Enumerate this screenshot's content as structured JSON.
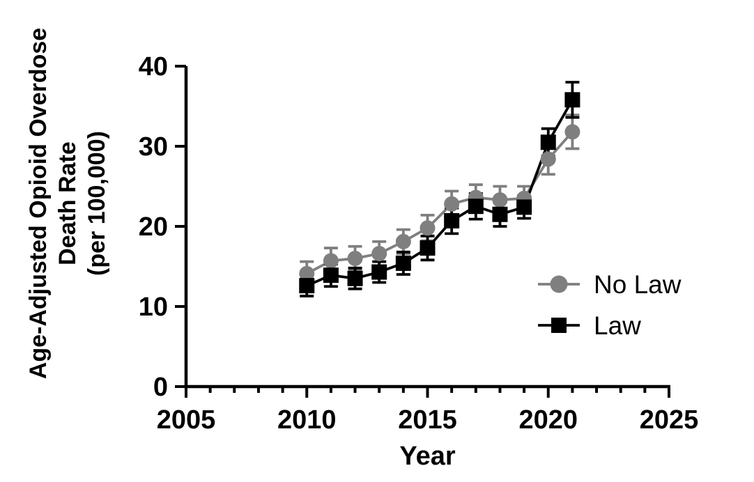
{
  "figure": {
    "background": "#ffffff",
    "axis_color": "#000000",
    "text_color": "#000000"
  },
  "chart_data": {
    "type": "line",
    "title": "",
    "xlabel": "Year",
    "ylabel_lines": [
      "Age-Adjusted Opioid Overdose",
      "Death Rate",
      "(per 100,000)"
    ],
    "xlim": [
      2005,
      2025
    ],
    "ylim": [
      0,
      40
    ],
    "xticks_major": [
      2005,
      2010,
      2015,
      2020,
      2025
    ],
    "xtick_minor_step": 1,
    "yticks": [
      0,
      10,
      20,
      30,
      40
    ],
    "grid": false,
    "legend_position": "inside-right-middle",
    "x": [
      2010,
      2011,
      2012,
      2013,
      2014,
      2015,
      2016,
      2017,
      2018,
      2019,
      2020,
      2021
    ],
    "series": [
      {
        "name": "No Law",
        "marker": "circle",
        "color": "#7f7f7f",
        "values": [
          14.1,
          15.7,
          16.0,
          16.6,
          18.1,
          19.8,
          22.8,
          23.6,
          23.3,
          23.5,
          28.4,
          31.8
        ],
        "errors": [
          1.5,
          1.6,
          1.5,
          1.5,
          1.5,
          1.6,
          1.6,
          1.6,
          1.7,
          1.5,
          1.9,
          2.1
        ]
      },
      {
        "name": "Law",
        "marker": "square",
        "color": "#000000",
        "values": [
          12.6,
          13.9,
          13.5,
          14.3,
          15.4,
          17.3,
          20.7,
          22.5,
          21.5,
          22.4,
          30.5,
          35.8
        ],
        "errors": [
          1.3,
          1.4,
          1.3,
          1.3,
          1.4,
          1.5,
          1.6,
          1.6,
          1.5,
          1.4,
          1.7,
          2.2
        ]
      }
    ]
  }
}
